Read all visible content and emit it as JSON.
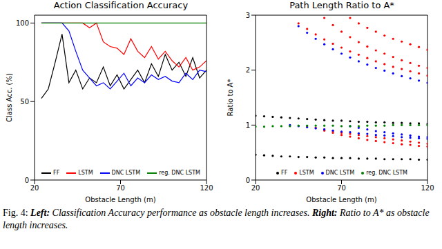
{
  "chart_data": [
    {
      "type": "line",
      "title": "Action Classification Accuracy",
      "x_label": "Obstacle Length (m)",
      "y_label": "Class Acc. (%)",
      "x": [
        24,
        28,
        32,
        36,
        40,
        44,
        48,
        52,
        56,
        60,
        64,
        68,
        72,
        76,
        80,
        84,
        88,
        92,
        96,
        100,
        104,
        108,
        112,
        116,
        120
      ],
      "xlim": [
        20,
        120
      ],
      "xticks": [
        20,
        70,
        120
      ],
      "ylim": [
        0,
        105
      ],
      "yticks": [
        0,
        50,
        100
      ],
      "legend": "bottom",
      "series": [
        {
          "name": "FF",
          "color": "#000000",
          "values": [
            52,
            58,
            75,
            93,
            62,
            70,
            58,
            65,
            62,
            72,
            60,
            67,
            58,
            64,
            70,
            62,
            74,
            66,
            80,
            70,
            75,
            66,
            78,
            65,
            70
          ]
        },
        {
          "name": "LSTM",
          "color": "#ff0000",
          "values": [
            100,
            100,
            100,
            100,
            100,
            100,
            100,
            97,
            100,
            88,
            85,
            84,
            80,
            90,
            82,
            78,
            85,
            77,
            82,
            76,
            72,
            78,
            70,
            72,
            76
          ]
        },
        {
          "name": "DNC LSTM",
          "color": "#0000ff",
          "values": [
            100,
            100,
            100,
            100,
            95,
            82,
            70,
            65,
            60,
            62,
            58,
            63,
            68,
            60,
            65,
            62,
            67,
            64,
            66,
            63,
            62,
            68,
            64,
            70,
            69
          ]
        },
        {
          "name": "reg. DNC LSTM",
          "color": "#008000",
          "values": [
            100,
            100,
            100,
            100,
            100,
            100,
            100,
            100,
            100,
            100,
            100,
            100,
            100,
            100,
            100,
            100,
            100,
            100,
            100,
            100,
            100,
            100,
            100,
            100,
            100
          ]
        }
      ]
    },
    {
      "type": "scatter",
      "title": "Path Length Ratio to A*",
      "x_label": "Obstacle Length (m)",
      "y_label": "Ratio to A*",
      "xlim": [
        20,
        120
      ],
      "xticks": [
        20,
        70,
        120
      ],
      "ylim": [
        0,
        3
      ],
      "yticks": [
        0,
        1,
        2,
        3
      ],
      "legend": "bottom",
      "marker": "circle",
      "series": [
        {
          "name": "FF",
          "color": "#000000",
          "x": [
            20,
            25,
            30,
            35,
            40,
            45,
            50,
            55,
            60,
            65,
            70,
            75,
            80,
            85,
            90,
            95,
            100,
            105,
            110,
            115,
            120,
            20,
            25,
            30,
            35,
            40,
            45,
            50,
            55,
            60,
            65,
            70,
            75,
            80,
            85,
            90,
            95,
            100,
            105,
            110,
            115,
            120
          ],
          "y": [
            1.17,
            1.16,
            1.15,
            1.14,
            1.13,
            1.12,
            1.11,
            1.1,
            1.09,
            1.08,
            1.08,
            1.07,
            1.06,
            1.06,
            1.05,
            1.05,
            1.04,
            1.04,
            1.03,
            1.03,
            1.02,
            0.46,
            0.45,
            0.44,
            0.43,
            0.43,
            0.42,
            0.42,
            0.41,
            0.41,
            0.4,
            0.4,
            0.4,
            0.39,
            0.39,
            0.39,
            0.38,
            0.38,
            0.38,
            0.38,
            0.37,
            0.37
          ]
        },
        {
          "name": "LSTM",
          "color": "#ff0000",
          "x": [
            75,
            80,
            85,
            90,
            95,
            100,
            105,
            110,
            115,
            120,
            60,
            65,
            70,
            75,
            80,
            85,
            90,
            95,
            100,
            105,
            110,
            115,
            120,
            45,
            50,
            55,
            60,
            65,
            70,
            75,
            80,
            85,
            90,
            95,
            100,
            105,
            110,
            115,
            120,
            50,
            55,
            60,
            65,
            70,
            75,
            80,
            85,
            90,
            95,
            100,
            105,
            110,
            115,
            120,
            60,
            65,
            70,
            75,
            80,
            85,
            90,
            95,
            100,
            105,
            110,
            115,
            120
          ],
          "y": [
            2.95,
            2.85,
            2.77,
            2.7,
            2.63,
            2.57,
            2.52,
            2.47,
            2.42,
            2.37,
            2.95,
            2.82,
            2.7,
            2.6,
            2.51,
            2.43,
            2.36,
            2.3,
            2.24,
            2.18,
            2.13,
            2.08,
            2.04,
            2.85,
            2.75,
            2.65,
            2.56,
            2.48,
            2.41,
            2.34,
            2.28,
            2.22,
            2.16,
            2.11,
            2.06,
            2.02,
            1.98,
            1.94,
            1.9,
            0.98,
            0.95,
            0.92,
            0.89,
            0.86,
            0.84,
            0.82,
            0.8,
            0.78,
            0.76,
            0.74,
            0.72,
            0.7,
            0.68,
            0.66,
            0.9,
            0.86,
            0.82,
            0.79,
            0.76,
            0.73,
            0.71,
            0.69,
            0.67,
            0.65,
            0.64,
            0.62,
            0.61
          ]
        },
        {
          "name": "DNC LSTM",
          "color": "#0000ff",
          "x": [
            45,
            50,
            55,
            60,
            65,
            70,
            75,
            80,
            85,
            90,
            95,
            100,
            105,
            110,
            115,
            120,
            40,
            45,
            50,
            55,
            60,
            65,
            70,
            75,
            80,
            85,
            90,
            95,
            100,
            105,
            110,
            115,
            120,
            75,
            80,
            85,
            90,
            95,
            100,
            105,
            110,
            115,
            120
          ],
          "y": [
            2.8,
            2.68,
            2.57,
            2.47,
            2.38,
            2.3,
            2.23,
            2.16,
            2.1,
            2.04,
            1.99,
            1.94,
            1.89,
            1.85,
            1.81,
            1.77,
            1.0,
            0.98,
            0.96,
            0.94,
            0.92,
            0.9,
            0.88,
            0.87,
            0.85,
            0.84,
            0.82,
            0.81,
            0.8,
            0.78,
            0.77,
            0.76,
            0.75,
            0.98,
            0.95,
            0.92,
            0.89,
            0.87,
            0.85,
            0.83,
            0.81,
            0.79,
            0.78
          ]
        },
        {
          "name": "reg. DNC LSTM",
          "color": "#008000",
          "x": [
            20,
            25,
            30,
            35,
            40,
            45,
            50,
            55,
            60,
            65,
            70,
            75,
            80,
            85,
            90,
            95,
            100,
            105,
            110,
            115,
            120
          ],
          "y": [
            0.97,
            0.97,
            0.98,
            0.98,
            0.98,
            0.99,
            0.99,
            0.99,
            0.99,
            0.99,
            0.98,
            0.98,
            0.98,
            0.99,
            0.99,
            0.99,
            1.0,
            1.0,
            1.0,
            1.0,
            1.0
          ]
        }
      ]
    }
  ],
  "caption": {
    "label": "Fig. 4:",
    "parts": [
      {
        "bold": "Left:",
        "text": "Classification Accuracy performance as obstacle length increases."
      },
      {
        "bold": "Right:",
        "text": "Ratio to A* as obstacle length increases."
      }
    ]
  }
}
